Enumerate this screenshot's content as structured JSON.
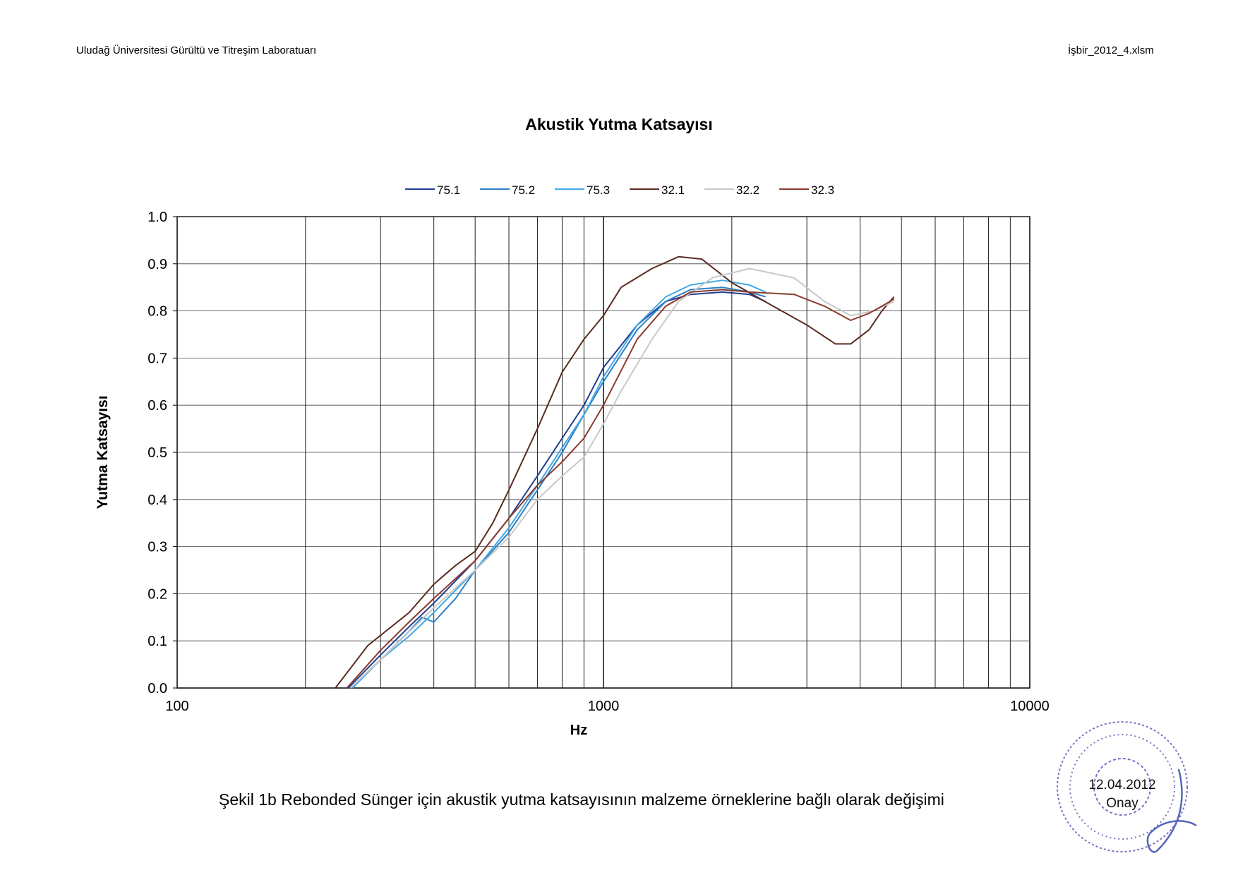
{
  "header": {
    "left": "Uludağ Üniversitesi Gürültü ve Titreşim Laboratuarı",
    "right": "İşbir_2012_4.xlsm"
  },
  "caption": "Şekil 1b Rebonded Sünger için akustik yutma katsayısının malzeme örneklerine bağlı olarak değişimi",
  "stamp": {
    "date": "12.04.2012",
    "label": "Onay",
    "color": "#5a4fb5"
  },
  "chart_data": {
    "type": "line",
    "title": "Akustik Yutma Katsayısı",
    "xlabel": "Hz",
    "ylabel": "Yutma Katsayısı",
    "x_scale": "log",
    "xlim": [
      100,
      10000
    ],
    "ylim": [
      0,
      1.0
    ],
    "x_ticks": [
      "100",
      "1000",
      "10000"
    ],
    "y_ticks": [
      "0.0",
      "0.1",
      "0.2",
      "0.3",
      "0.4",
      "0.5",
      "0.6",
      "0.7",
      "0.8",
      "0.9",
      "1.0"
    ],
    "grid": true,
    "legend_position": "top",
    "series": [
      {
        "name": "75.1",
        "color": "#1f3f8f",
        "points": [
          [
            252,
            0
          ],
          [
            300,
            0.07
          ],
          [
            350,
            0.13
          ],
          [
            400,
            0.18
          ],
          [
            500,
            0.27
          ],
          [
            600,
            0.36
          ],
          [
            700,
            0.45
          ],
          [
            800,
            0.53
          ],
          [
            900,
            0.6
          ],
          [
            1000,
            0.68
          ],
          [
            1200,
            0.77
          ],
          [
            1400,
            0.82
          ],
          [
            1600,
            0.835
          ],
          [
            1900,
            0.84
          ],
          [
            2200,
            0.835
          ],
          [
            2400,
            0.82
          ]
        ]
      },
      {
        "name": "75.2",
        "color": "#2d7fc6",
        "points": [
          [
            255,
            0
          ],
          [
            300,
            0.06
          ],
          [
            350,
            0.12
          ],
          [
            375,
            0.15
          ],
          [
            400,
            0.14
          ],
          [
            450,
            0.19
          ],
          [
            500,
            0.25
          ],
          [
            600,
            0.33
          ],
          [
            700,
            0.42
          ],
          [
            800,
            0.5
          ],
          [
            900,
            0.58
          ],
          [
            1000,
            0.65
          ],
          [
            1200,
            0.76
          ],
          [
            1400,
            0.82
          ],
          [
            1600,
            0.845
          ],
          [
            1900,
            0.85
          ],
          [
            2200,
            0.84
          ],
          [
            2400,
            0.83
          ]
        ]
      },
      {
        "name": "75.3",
        "color": "#3fa9e6",
        "points": [
          [
            258,
            0
          ],
          [
            300,
            0.06
          ],
          [
            350,
            0.11
          ],
          [
            400,
            0.16
          ],
          [
            500,
            0.25
          ],
          [
            600,
            0.34
          ],
          [
            700,
            0.43
          ],
          [
            800,
            0.51
          ],
          [
            900,
            0.58
          ],
          [
            1000,
            0.66
          ],
          [
            1200,
            0.77
          ],
          [
            1400,
            0.83
          ],
          [
            1600,
            0.855
          ],
          [
            1900,
            0.865
          ],
          [
            2200,
            0.855
          ],
          [
            2400,
            0.84
          ]
        ]
      },
      {
        "name": "32.1",
        "color": "#5a2a20",
        "points": [
          [
            235,
            0
          ],
          [
            280,
            0.09
          ],
          [
            350,
            0.16
          ],
          [
            400,
            0.22
          ],
          [
            450,
            0.26
          ],
          [
            500,
            0.29
          ],
          [
            550,
            0.35
          ],
          [
            600,
            0.42
          ],
          [
            700,
            0.55
          ],
          [
            800,
            0.67
          ],
          [
            900,
            0.74
          ],
          [
            1000,
            0.79
          ],
          [
            1100,
            0.85
          ],
          [
            1300,
            0.89
          ],
          [
            1500,
            0.915
          ],
          [
            1700,
            0.91
          ],
          [
            2000,
            0.86
          ],
          [
            2500,
            0.81
          ],
          [
            3000,
            0.77
          ],
          [
            3500,
            0.73
          ],
          [
            3800,
            0.73
          ],
          [
            4200,
            0.76
          ],
          [
            4500,
            0.8
          ],
          [
            4800,
            0.83
          ]
        ]
      },
      {
        "name": "32.2",
        "color": "#c8c8c8",
        "points": [
          [
            255,
            0
          ],
          [
            300,
            0.06
          ],
          [
            400,
            0.17
          ],
          [
            500,
            0.25
          ],
          [
            600,
            0.32
          ],
          [
            700,
            0.4
          ],
          [
            800,
            0.45
          ],
          [
            900,
            0.49
          ],
          [
            1000,
            0.56
          ],
          [
            1100,
            0.63
          ],
          [
            1300,
            0.74
          ],
          [
            1500,
            0.82
          ],
          [
            1800,
            0.87
          ],
          [
            2200,
            0.89
          ],
          [
            2800,
            0.87
          ],
          [
            3300,
            0.82
          ],
          [
            3800,
            0.79
          ],
          [
            4300,
            0.8
          ],
          [
            4800,
            0.82
          ]
        ]
      },
      {
        "name": "32.3",
        "color": "#8b3a2e",
        "points": [
          [
            250,
            0
          ],
          [
            300,
            0.08
          ],
          [
            350,
            0.14
          ],
          [
            400,
            0.19
          ],
          [
            500,
            0.27
          ],
          [
            600,
            0.36
          ],
          [
            700,
            0.43
          ],
          [
            800,
            0.48
          ],
          [
            900,
            0.53
          ],
          [
            1000,
            0.6
          ],
          [
            1200,
            0.74
          ],
          [
            1400,
            0.81
          ],
          [
            1600,
            0.84
          ],
          [
            1900,
            0.845
          ],
          [
            2200,
            0.84
          ],
          [
            2800,
            0.835
          ],
          [
            3300,
            0.81
          ],
          [
            3800,
            0.78
          ],
          [
            4200,
            0.795
          ],
          [
            4500,
            0.81
          ],
          [
            4800,
            0.825
          ]
        ]
      }
    ]
  }
}
